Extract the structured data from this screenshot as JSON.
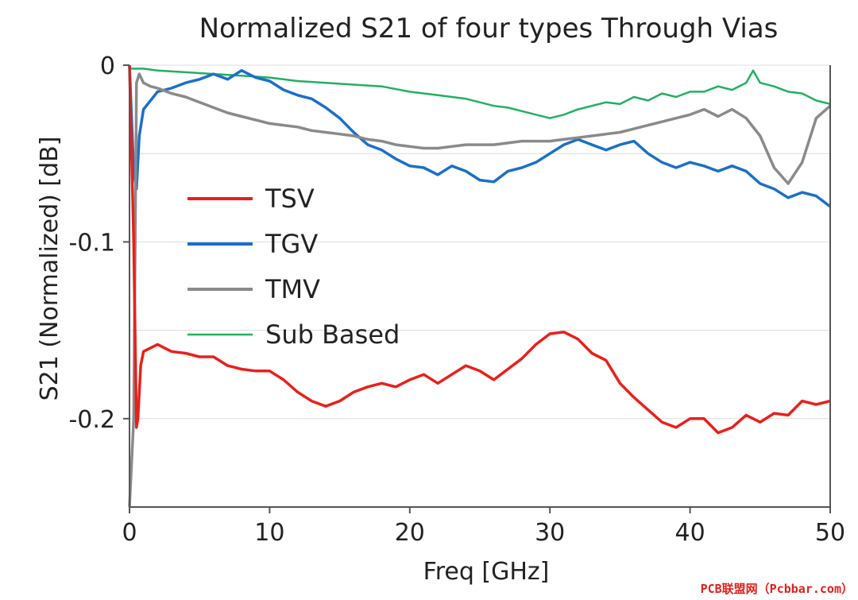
{
  "watermark": "PCB联盟网（Pcbbar.com）",
  "chart_data": {
    "type": "line",
    "title": "Normalized S21 of four types Through Vias",
    "xlabel": "Freq [GHz]",
    "ylabel": "S21 (Normalized) [dB]",
    "xlim": [
      0,
      50
    ],
    "ylim": [
      -0.25,
      0
    ],
    "xticks": [
      0,
      10,
      20,
      30,
      40,
      50
    ],
    "xtick_labels": [
      "0",
      "10",
      "20",
      "30",
      "40",
      "50"
    ],
    "yticks": [
      0,
      -0.1,
      -0.2
    ],
    "ytick_labels": [
      "0",
      "-0.1",
      "-0.2"
    ],
    "grid": true,
    "legend_position": "center-left",
    "series": [
      {
        "name": "TSV",
        "color": "#e8201c",
        "x": [
          0,
          0.3,
          0.5,
          0.6,
          0.8,
          1,
          1.5,
          2,
          3,
          4,
          5,
          6,
          7,
          8,
          9,
          10,
          11,
          12,
          13,
          14,
          15,
          16,
          17,
          18,
          19,
          20,
          21,
          22,
          23,
          24,
          25,
          26,
          27,
          28,
          29,
          30,
          31,
          32,
          33,
          34,
          35,
          36,
          37,
          38,
          39,
          40,
          41,
          42,
          43,
          44,
          45,
          46,
          47,
          48,
          49,
          50
        ],
        "y": [
          0,
          -0.1,
          -0.205,
          -0.2,
          -0.17,
          -0.162,
          -0.16,
          -0.158,
          -0.162,
          -0.163,
          -0.165,
          -0.165,
          -0.17,
          -0.172,
          -0.173,
          -0.173,
          -0.178,
          -0.185,
          -0.19,
          -0.193,
          -0.19,
          -0.185,
          -0.182,
          -0.18,
          -0.182,
          -0.178,
          -0.175,
          -0.18,
          -0.175,
          -0.17,
          -0.173,
          -0.178,
          -0.172,
          -0.166,
          -0.158,
          -0.152,
          -0.151,
          -0.155,
          -0.163,
          -0.167,
          -0.18,
          -0.188,
          -0.195,
          -0.202,
          -0.205,
          -0.2,
          -0.2,
          -0.208,
          -0.205,
          -0.198,
          -0.202,
          -0.197,
          -0.198,
          -0.19,
          -0.192,
          -0.19
        ]
      },
      {
        "name": "TGV",
        "color": "#1b6fc8",
        "x": [
          0,
          0.3,
          0.5,
          0.7,
          1,
          1.5,
          2,
          3,
          4,
          5,
          6,
          7,
          8,
          9,
          10,
          11,
          12,
          13,
          14,
          15,
          16,
          17,
          18,
          19,
          20,
          21,
          22,
          23,
          24,
          25,
          26,
          27,
          28,
          29,
          30,
          31,
          32,
          33,
          34,
          35,
          36,
          37,
          38,
          39,
          40,
          41,
          42,
          43,
          44,
          45,
          46,
          47,
          48,
          49,
          50
        ],
        "y": [
          0,
          -0.06,
          -0.07,
          -0.04,
          -0.025,
          -0.02,
          -0.015,
          -0.013,
          -0.01,
          -0.008,
          -0.005,
          -0.008,
          -0.003,
          -0.007,
          -0.009,
          -0.014,
          -0.017,
          -0.019,
          -0.024,
          -0.03,
          -0.038,
          -0.045,
          -0.048,
          -0.053,
          -0.057,
          -0.058,
          -0.062,
          -0.057,
          -0.06,
          -0.065,
          -0.066,
          -0.06,
          -0.058,
          -0.055,
          -0.05,
          -0.045,
          -0.042,
          -0.045,
          -0.048,
          -0.045,
          -0.043,
          -0.05,
          -0.055,
          -0.058,
          -0.055,
          -0.057,
          -0.06,
          -0.057,
          -0.06,
          -0.067,
          -0.07,
          -0.075,
          -0.072,
          -0.074,
          -0.08
        ]
      },
      {
        "name": "TMV",
        "color": "#8a8a8a",
        "x": [
          0,
          0.3,
          0.5,
          0.7,
          1,
          1.5,
          2,
          3,
          4,
          5,
          6,
          7,
          8,
          9,
          10,
          11,
          12,
          13,
          14,
          15,
          16,
          17,
          18,
          19,
          20,
          21,
          22,
          23,
          24,
          25,
          26,
          27,
          28,
          29,
          30,
          31,
          32,
          33,
          34,
          35,
          36,
          37,
          38,
          39,
          40,
          41,
          42,
          43,
          44,
          45,
          46,
          47,
          48,
          49,
          50
        ],
        "y": [
          -0.25,
          -0.2,
          -0.01,
          -0.005,
          -0.01,
          -0.012,
          -0.013,
          -0.016,
          -0.018,
          -0.021,
          -0.024,
          -0.027,
          -0.029,
          -0.031,
          -0.033,
          -0.034,
          -0.035,
          -0.037,
          -0.038,
          -0.039,
          -0.04,
          -0.042,
          -0.043,
          -0.045,
          -0.046,
          -0.047,
          -0.047,
          -0.046,
          -0.045,
          -0.045,
          -0.045,
          -0.044,
          -0.043,
          -0.043,
          -0.043,
          -0.042,
          -0.041,
          -0.04,
          -0.039,
          -0.038,
          -0.036,
          -0.034,
          -0.032,
          -0.03,
          -0.028,
          -0.025,
          -0.029,
          -0.025,
          -0.03,
          -0.04,
          -0.058,
          -0.067,
          -0.055,
          -0.03,
          -0.023
        ]
      },
      {
        "name": "Sub Based",
        "color": "#22b060",
        "x": [
          0,
          1,
          2,
          4,
          6,
          8,
          10,
          12,
          14,
          16,
          18,
          20,
          22,
          24,
          25,
          26,
          27,
          28,
          29,
          30,
          31,
          32,
          33,
          34,
          35,
          36,
          37,
          38,
          39,
          40,
          41,
          42,
          43,
          44,
          44.5,
          45,
          46,
          47,
          48,
          49,
          50
        ],
        "y": [
          -0.002,
          -0.002,
          -0.003,
          -0.004,
          -0.005,
          -0.006,
          -0.007,
          -0.009,
          -0.01,
          -0.011,
          -0.012,
          -0.015,
          -0.017,
          -0.019,
          -0.021,
          -0.023,
          -0.024,
          -0.026,
          -0.028,
          -0.03,
          -0.028,
          -0.025,
          -0.023,
          -0.021,
          -0.022,
          -0.018,
          -0.02,
          -0.016,
          -0.018,
          -0.015,
          -0.015,
          -0.012,
          -0.014,
          -0.01,
          -0.003,
          -0.01,
          -0.012,
          -0.015,
          -0.016,
          -0.02,
          -0.022
        ]
      }
    ]
  }
}
